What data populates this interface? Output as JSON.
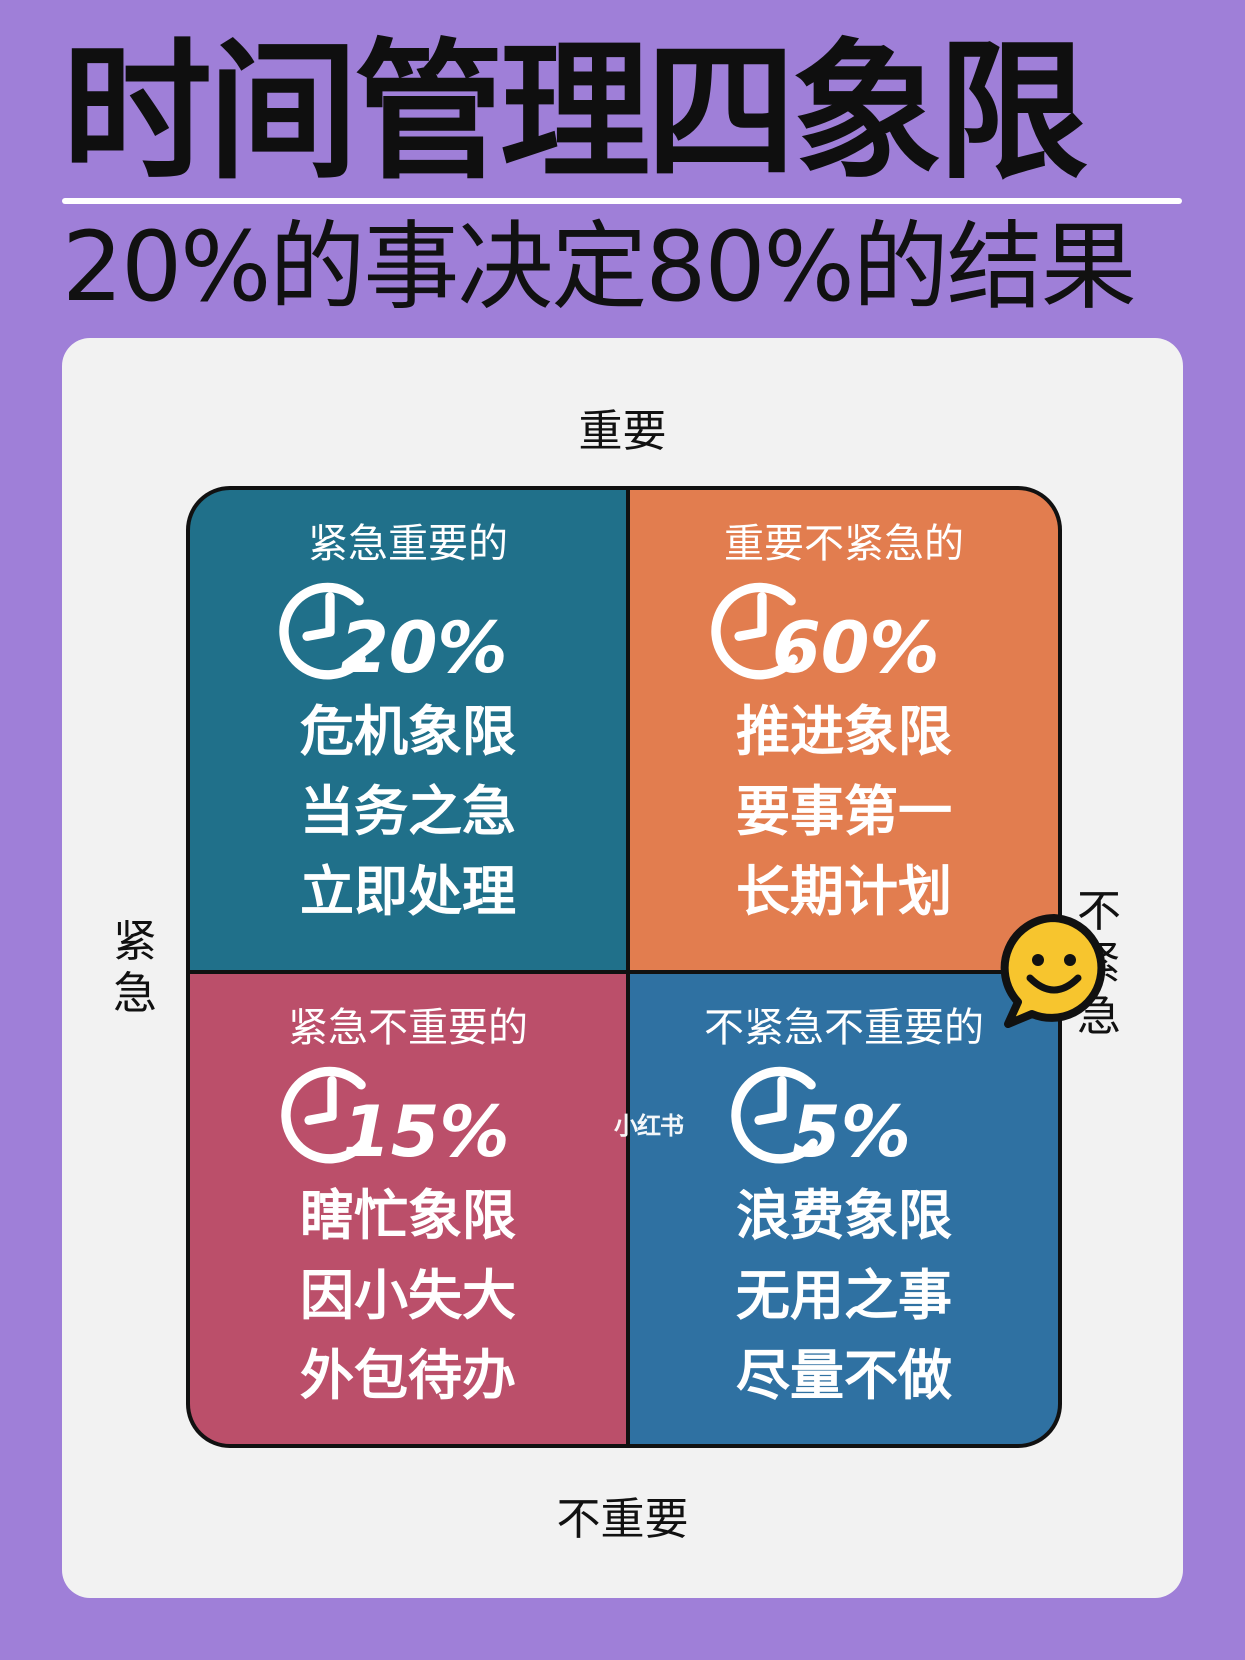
{
  "header": {
    "title": "时间管理四象限",
    "subtitle": "20%的事决定80%的结果"
  },
  "axes": {
    "top": "重要",
    "bottom": "不重要",
    "left": "紧急",
    "right": "不紧急"
  },
  "quadrants": [
    {
      "heading": "紧急重要的",
      "percent": "20%",
      "lines": [
        "危机象限",
        "当务之急",
        "立即处理"
      ],
      "color": "#20708a"
    },
    {
      "heading": "重要不紧急的",
      "percent": "60%",
      "lines": [
        "推进象限",
        "要事第一",
        "长期计划"
      ],
      "color": "#e27d4f"
    },
    {
      "heading": "紧急不重要的",
      "percent": "15%",
      "lines": [
        "瞎忙象限",
        "因小失大",
        "外包待办"
      ],
      "color": "#bb4f6a"
    },
    {
      "heading": "不紧急不重要的",
      "percent": "5%",
      "lines": [
        "浪费象限",
        "无用之事",
        "尽量不做"
      ],
      "color": "#2f71a2"
    }
  ],
  "icons": {
    "clock": "clock-icon",
    "smiley": "smiley-speech-bubble-icon"
  },
  "watermark": "小红书"
}
